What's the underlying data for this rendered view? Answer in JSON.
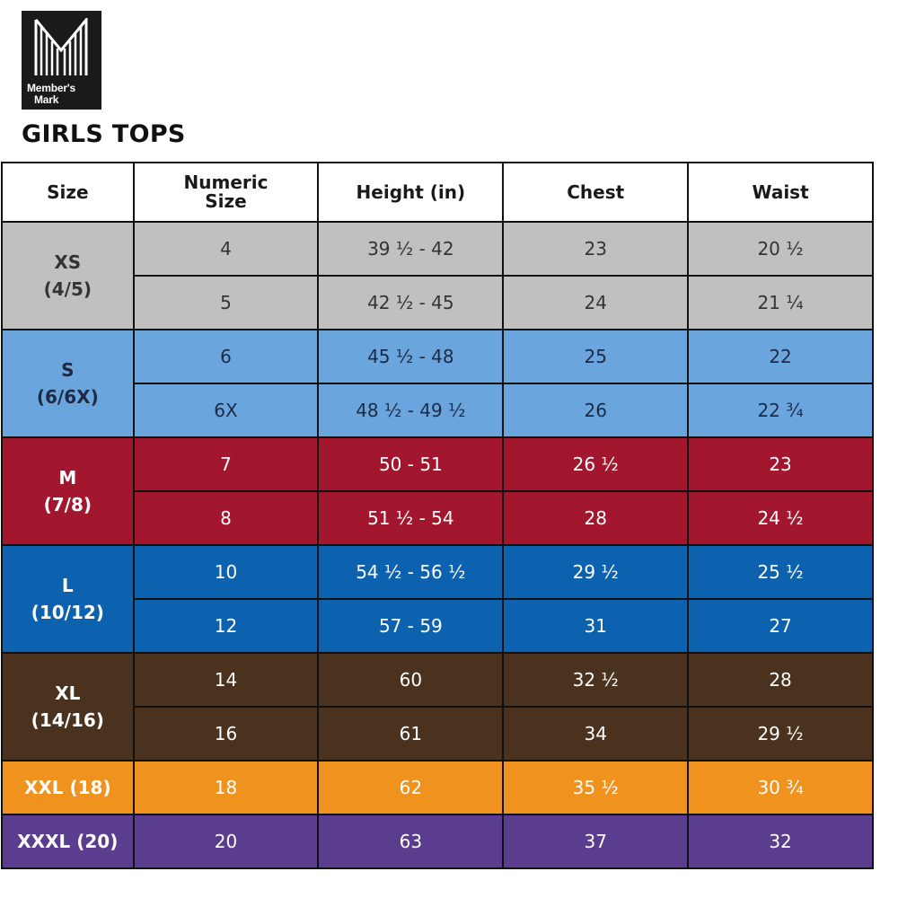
{
  "brand": {
    "line1": "Member's",
    "line2": "Mark"
  },
  "title": "GIRLS TOPS",
  "table": {
    "headers": [
      "Size",
      "Numeric Size",
      "Height (in)",
      "Chest",
      "Waist"
    ],
    "groups": [
      {
        "size": "XS",
        "alt": "(4/5)",
        "bg": "#c0c0c0",
        "fg": "#333333",
        "rows": [
          [
            "4",
            "39 ½ - 42",
            "23",
            "20 ½"
          ],
          [
            "5",
            "42 ½ - 45",
            "24",
            "21 ¼"
          ]
        ]
      },
      {
        "size": "S",
        "alt": "(6/6X)",
        "bg": "#6aa5de",
        "fg": "#1e2a44",
        "rows": [
          [
            "6",
            "45 ½ - 48",
            "25",
            "22"
          ],
          [
            "6X",
            "48 ½ - 49 ½",
            "26",
            "22 ¾"
          ]
        ]
      },
      {
        "size": "M",
        "alt": "(7/8)",
        "bg": "#a3172e",
        "fg": "#ffffff",
        "rows": [
          [
            "7",
            "50 - 51",
            "26 ½",
            "23"
          ],
          [
            "8",
            "51 ½ - 54",
            "28",
            "24 ½"
          ]
        ]
      },
      {
        "size": "L",
        "alt": "(10/12)",
        "bg": "#0d62b0",
        "fg": "#ffffff",
        "rows": [
          [
            "10",
            "54 ½ - 56 ½",
            "29 ½",
            "25 ½"
          ],
          [
            "12",
            "57 - 59",
            "31",
            "27"
          ]
        ]
      },
      {
        "size": "XL",
        "alt": "(14/16)",
        "bg": "#4a321f",
        "fg": "#ffffff",
        "rows": [
          [
            "14",
            "60",
            "32 ½",
            "28"
          ],
          [
            "16",
            "61",
            "34",
            "29 ½"
          ]
        ]
      },
      {
        "size": "XXL (18)",
        "alt": "",
        "bg": "#f0921e",
        "fg": "#ffffff",
        "rows": [
          [
            "18",
            "62",
            "35 ½",
            "30 ¾"
          ]
        ]
      },
      {
        "size": "XXXL (20)",
        "alt": "",
        "bg": "#5a3d8f",
        "fg": "#ffffff",
        "rows": [
          [
            "20",
            "63",
            "37",
            "32"
          ]
        ]
      }
    ]
  }
}
